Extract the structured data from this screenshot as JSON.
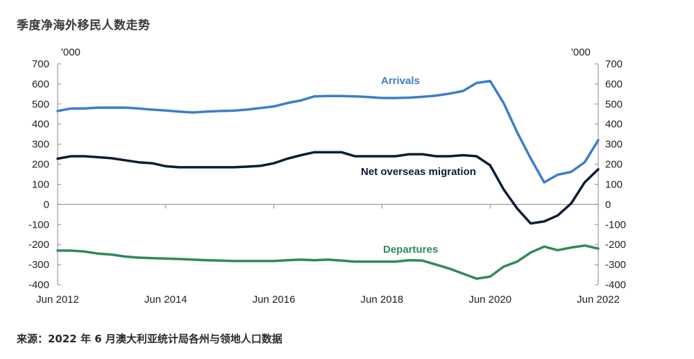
{
  "title": "季度净海外移民人数走势",
  "source": "来源：2022 年 6 月澳大利亚统计局各州与领地人口数据",
  "chart_data": {
    "type": "line",
    "y_unit_left": "'000",
    "y_unit_right": "'000",
    "ylim": [
      -400,
      700
    ],
    "yticks": [
      700,
      600,
      500,
      400,
      300,
      200,
      100,
      0,
      -100,
      -200,
      -300,
      -400
    ],
    "xlim": [
      2012.5,
      2022.5
    ],
    "xticks": [
      {
        "value": 2012.5,
        "label": "Jun 2012"
      },
      {
        "value": 2014.5,
        "label": "Jun 2014"
      },
      {
        "value": 2016.5,
        "label": "Jun 2016"
      },
      {
        "value": 2018.5,
        "label": "Jun 2018"
      },
      {
        "value": 2020.5,
        "label": "Jun 2020"
      },
      {
        "value": 2022.5,
        "label": "Jun 2022"
      }
    ],
    "grid": false,
    "series": [
      {
        "name": "Arrivals",
        "color": "#3a7fc8",
        "x": [
          2012.5,
          2012.75,
          2013.0,
          2013.25,
          2013.5,
          2013.75,
          2014.0,
          2014.25,
          2014.5,
          2014.75,
          2015.0,
          2015.25,
          2015.5,
          2015.75,
          2016.0,
          2016.25,
          2016.5,
          2016.75,
          2017.0,
          2017.25,
          2017.5,
          2017.75,
          2018.0,
          2018.25,
          2018.5,
          2018.75,
          2019.0,
          2019.25,
          2019.5,
          2019.75,
          2020.0,
          2020.25,
          2020.5,
          2020.75,
          2021.0,
          2021.25,
          2021.5,
          2021.75,
          2022.0,
          2022.25,
          2022.5
        ],
        "values": [
          465,
          478,
          478,
          482,
          482,
          482,
          478,
          472,
          468,
          462,
          458,
          462,
          465,
          467,
          472,
          480,
          488,
          505,
          518,
          538,
          540,
          540,
          538,
          535,
          530,
          530,
          532,
          536,
          542,
          552,
          565,
          605,
          615,
          505,
          360,
          230,
          110,
          148,
          162,
          210,
          320
        ]
      },
      {
        "name": "Net overseas migration",
        "color": "#0c1c33",
        "x": [
          2012.5,
          2012.75,
          2013.0,
          2013.25,
          2013.5,
          2013.75,
          2014.0,
          2014.25,
          2014.5,
          2014.75,
          2015.0,
          2015.25,
          2015.5,
          2015.75,
          2016.0,
          2016.25,
          2016.5,
          2016.75,
          2017.0,
          2017.25,
          2017.5,
          2017.75,
          2018.0,
          2018.25,
          2018.5,
          2018.75,
          2019.0,
          2019.25,
          2019.5,
          2019.75,
          2020.0,
          2020.25,
          2020.5,
          2020.75,
          2021.0,
          2021.25,
          2021.5,
          2021.75,
          2022.0,
          2022.25,
          2022.5
        ],
        "values": [
          228,
          240,
          240,
          235,
          230,
          220,
          210,
          205,
          190,
          185,
          185,
          185,
          185,
          185,
          188,
          192,
          205,
          228,
          245,
          260,
          260,
          260,
          240,
          240,
          240,
          240,
          250,
          250,
          240,
          240,
          245,
          240,
          195,
          75,
          -20,
          -95,
          -85,
          -55,
          5,
          110,
          175
        ]
      },
      {
        "name": "Departures",
        "color": "#2f8a5a",
        "x": [
          2012.5,
          2012.75,
          2013.0,
          2013.25,
          2013.5,
          2013.75,
          2014.0,
          2014.25,
          2014.5,
          2014.75,
          2015.0,
          2015.25,
          2015.5,
          2015.75,
          2016.0,
          2016.25,
          2016.5,
          2016.75,
          2017.0,
          2017.25,
          2017.5,
          2017.75,
          2018.0,
          2018.25,
          2018.5,
          2018.75,
          2019.0,
          2019.25,
          2019.5,
          2019.75,
          2020.0,
          2020.25,
          2020.5,
          2020.75,
          2021.0,
          2021.25,
          2021.5,
          2021.75,
          2022.0,
          2022.25,
          2022.5
        ],
        "values": [
          -230,
          -230,
          -235,
          -245,
          -250,
          -260,
          -265,
          -268,
          -270,
          -272,
          -275,
          -278,
          -280,
          -282,
          -282,
          -282,
          -282,
          -278,
          -275,
          -278,
          -275,
          -280,
          -285,
          -285,
          -285,
          -285,
          -278,
          -280,
          -300,
          -320,
          -345,
          -370,
          -360,
          -310,
          -285,
          -240,
          -210,
          -228,
          -215,
          -205,
          -220
        ]
      }
    ]
  }
}
